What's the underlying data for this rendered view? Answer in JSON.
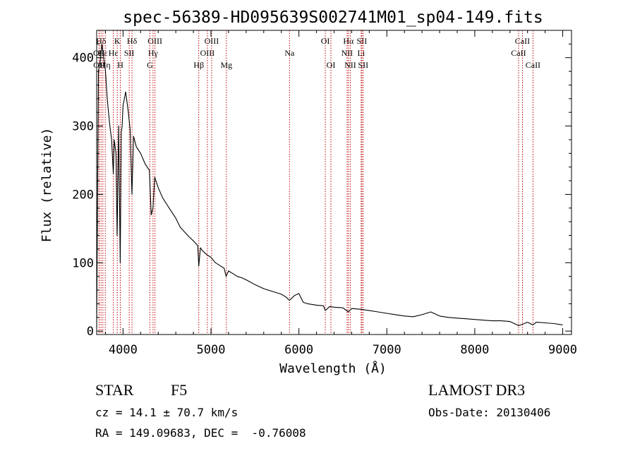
{
  "chart_data": {
    "type": "line",
    "title": "spec-56389-HD095639S002741M01_sp04-149.fits",
    "xlabel": "Wavelength (Å)",
    "ylabel": "Flux (relative)",
    "xlim": [
      3700,
      9100
    ],
    "ylim": [
      -5,
      440
    ],
    "xticks": [
      4000,
      5000,
      6000,
      7000,
      8000,
      9000
    ],
    "xtick_labels": [
      "4000",
      "5000",
      "6000",
      "7000",
      "8000",
      "9000"
    ],
    "yticks": [
      0,
      100,
      200,
      300,
      400
    ],
    "ytick_labels": [
      "0",
      "100",
      "200",
      "300",
      "400"
    ],
    "series": [
      {
        "name": "spectrum",
        "x": [
          3700,
          3720,
          3740,
          3760,
          3780,
          3800,
          3820,
          3835,
          3850,
          3870,
          3889,
          3900,
          3920,
          3933,
          3950,
          3968,
          3980,
          3990,
          4000,
          4030,
          4060,
          4080,
          4101,
          4120,
          4150,
          4200,
          4250,
          4300,
          4320,
          4340,
          4360,
          4400,
          4450,
          4500,
          4550,
          4600,
          4650,
          4700,
          4750,
          4800,
          4850,
          4861,
          4880,
          4900,
          4950,
          5000,
          5050,
          5100,
          5150,
          5172,
          5200,
          5250,
          5300,
          5350,
          5400,
          5500,
          5600,
          5700,
          5800,
          5850,
          5893,
          5950,
          6000,
          6050,
          6100,
          6200,
          6280,
          6300,
          6350,
          6400,
          6500,
          6563,
          6600,
          6700,
          6800,
          6900,
          7000,
          7100,
          7200,
          7300,
          7400,
          7500,
          7550,
          7600,
          7700,
          7800,
          7900,
          8000,
          8100,
          8200,
          8300,
          8400,
          8498,
          8542,
          8600,
          8662,
          8700,
          8800,
          8900,
          9000
        ],
        "y": [
          5,
          380,
          395,
          420,
          400,
          380,
          340,
          320,
          300,
          280,
          230,
          280,
          260,
          140,
          300,
          100,
          290,
          300,
          330,
          350,
          320,
          295,
          200,
          285,
          270,
          260,
          245,
          235,
          170,
          180,
          225,
          210,
          195,
          185,
          175,
          165,
          152,
          145,
          138,
          132,
          125,
          95,
          122,
          118,
          112,
          108,
          100,
          96,
          92,
          80,
          88,
          84,
          80,
          78,
          75,
          68,
          62,
          58,
          54,
          50,
          45,
          52,
          55,
          42,
          40,
          38,
          37,
          30,
          36,
          35,
          34,
          28,
          33,
          32,
          30,
          28,
          26,
          24,
          22,
          21,
          24,
          28,
          25,
          22,
          20,
          19,
          18,
          17,
          16,
          15,
          15,
          14,
          8,
          10,
          13,
          9,
          13,
          12,
          11,
          9
        ]
      }
    ],
    "line_markers": [
      {
        "label": "Hδ",
        "x": 3750,
        "row": 1
      },
      {
        "label": "OII",
        "x": 3727,
        "row": 2
      },
      {
        "label": "OII",
        "x": 3729,
        "row": 3
      },
      {
        "label": "Hε",
        "x": 3771,
        "row": 2
      },
      {
        "label": "Hη",
        "x": 3798,
        "row": 3
      },
      {
        "label": "K",
        "x": 3934,
        "row": 1
      },
      {
        "label": "Hε",
        "x": 3889,
        "row": 2
      },
      {
        "label": "SII",
        "x": 4070,
        "row": 2
      },
      {
        "label": "H",
        "x": 3969,
        "row": 3
      },
      {
        "label": "Hδ",
        "x": 4102,
        "row": 1
      },
      {
        "label": "OIII",
        "x": 4363,
        "row": 1
      },
      {
        "label": "Hγ",
        "x": 4341,
        "row": 2
      },
      {
        "label": "G",
        "x": 4305,
        "row": 3
      },
      {
        "label": "OIII",
        "x": 5007,
        "row": 1
      },
      {
        "label": "OIII",
        "x": 4959,
        "row": 2
      },
      {
        "label": "Hβ",
        "x": 4861,
        "row": 3
      },
      {
        "label": "Mg",
        "x": 5175,
        "row": 3
      },
      {
        "label": "Na",
        "x": 5893,
        "row": 2
      },
      {
        "label": "OI",
        "x": 6300,
        "row": 1
      },
      {
        "label": "OI",
        "x": 6364,
        "row": 3
      },
      {
        "label": "Hα",
        "x": 6563,
        "row": 1
      },
      {
        "label": "SII",
        "x": 6716,
        "row": 1
      },
      {
        "label": "NII",
        "x": 6548,
        "row": 2
      },
      {
        "label": "Li",
        "x": 6708,
        "row": 2
      },
      {
        "label": "NII",
        "x": 6584,
        "row": 3
      },
      {
        "label": "SII",
        "x": 6731,
        "row": 3
      },
      {
        "label": "CaII",
        "x": 8542,
        "row": 1
      },
      {
        "label": "CaII",
        "x": 8498,
        "row": 2
      },
      {
        "label": "CaII",
        "x": 8662,
        "row": 3
      }
    ]
  },
  "info": {
    "object_class": "STAR",
    "subclass": "F5",
    "survey": "LAMOST DR3",
    "cz": "cz = 14.1 ± 70.7 km/s",
    "obs_date": "Obs-Date: 20130406",
    "coords": "RA = 149.09683, DEC =  -0.76008"
  }
}
